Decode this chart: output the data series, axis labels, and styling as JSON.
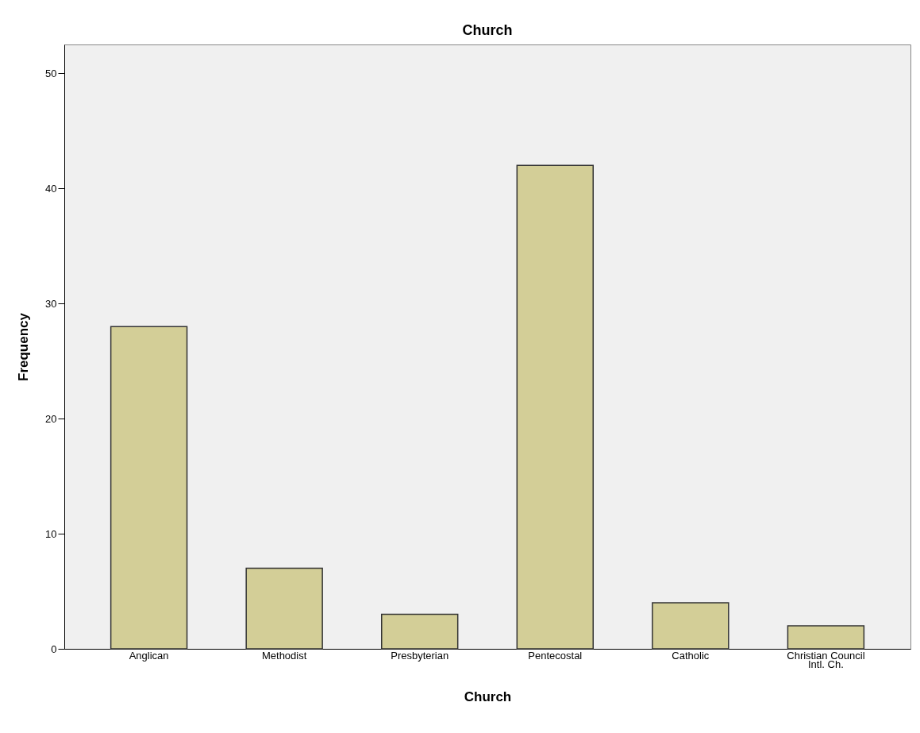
{
  "chart_data": {
    "type": "bar",
    "title": "Church",
    "xlabel": "Church",
    "ylabel": "Frequency",
    "categories": [
      "Anglican",
      "Methodist",
      "Presbyterian",
      "Pentecostal",
      "Catholic",
      "Christian Council Intl. Ch."
    ],
    "values": [
      28,
      7,
      3,
      42,
      4,
      2
    ],
    "color": "#d3ce97",
    "ylim": [
      0,
      52.5
    ],
    "yticks": [
      0,
      10,
      20,
      30,
      40,
      50
    ],
    "grid": false
  }
}
